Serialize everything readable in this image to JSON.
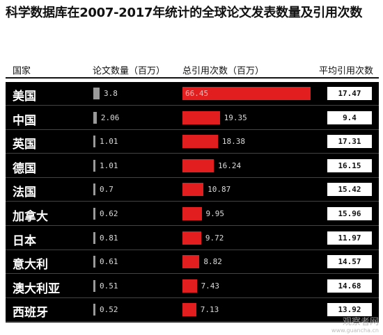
{
  "title": "科学数据库在2007-2017年统计的全球论文发表数量及引用次数",
  "header": {
    "country": "国家",
    "papers": "论文数量（百万）",
    "citations": "总引用次数（百万）",
    "avg": "平均引用次数"
  },
  "chart_data": {
    "type": "table",
    "title": "科学数据库在2007-2017年统计的全球论文发表数量及引用次数",
    "columns": [
      "国家",
      "论文数量（百万）",
      "总引用次数（百万）",
      "平均引用次数"
    ],
    "rows": [
      {
        "country": "美国",
        "papers": 3.8,
        "citations": 66.45,
        "avg": 17.47
      },
      {
        "country": "中国",
        "papers": 2.06,
        "citations": 19.35,
        "avg": 9.4
      },
      {
        "country": "英国",
        "papers": 1.01,
        "citations": 18.38,
        "avg": 17.31
      },
      {
        "country": "德国",
        "papers": 1.01,
        "citations": 16.24,
        "avg": 16.15
      },
      {
        "country": "法国",
        "papers": 0.7,
        "citations": 10.87,
        "avg": 15.42
      },
      {
        "country": "加拿大",
        "papers": 0.62,
        "citations": 9.95,
        "avg": 15.96
      },
      {
        "country": "日本",
        "papers": 0.81,
        "citations": 9.72,
        "avg": 11.97
      },
      {
        "country": "意大利",
        "papers": 0.61,
        "citations": 8.82,
        "avg": 14.57
      },
      {
        "country": "澳大利亚",
        "papers": 0.51,
        "citations": 7.43,
        "avg": 14.68
      },
      {
        "country": "西班牙",
        "papers": 0.52,
        "citations": 7.13,
        "avg": 13.92
      }
    ],
    "papers_bar_color": "#9a9a9a",
    "citations_bar_color": "#e21e1e"
  },
  "watermark": {
    "line1": "观察者网",
    "line2": "www.guancha.cn"
  }
}
